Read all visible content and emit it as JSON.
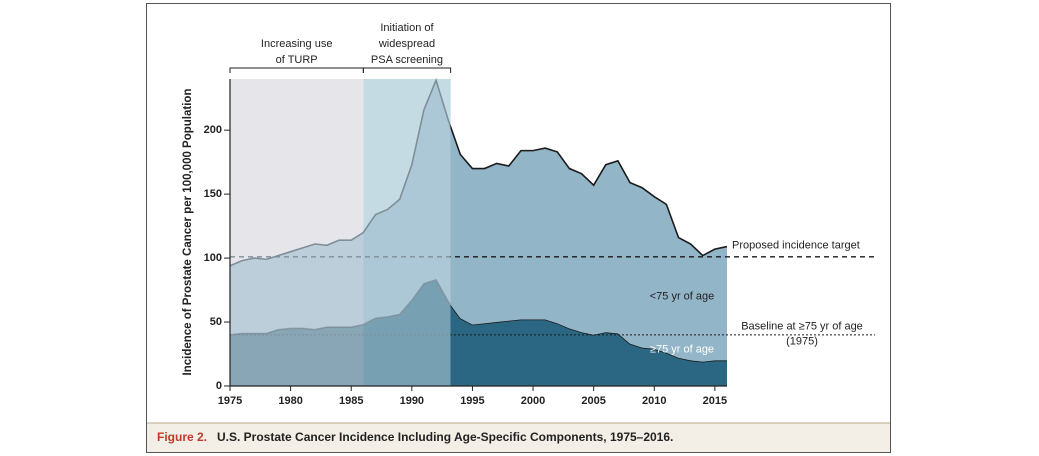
{
  "chart_data": {
    "type": "stacked-area",
    "y_label": "Incidence of Prostate Cancer per 100,000 Population",
    "caption": {
      "label": "Figure 2.",
      "text": "U.S. Prostate Cancer Incidence Including Age-Specific Components, 1975–2016."
    },
    "x": [
      1975,
      1976,
      1977,
      1978,
      1979,
      1980,
      1981,
      1982,
      1983,
      1984,
      1985,
      1986,
      1987,
      1988,
      1989,
      1990,
      1991,
      1992,
      1993,
      1994,
      1995,
      1996,
      1997,
      1998,
      1999,
      2000,
      2001,
      2002,
      2003,
      2004,
      2005,
      2006,
      2007,
      2008,
      2009,
      2010,
      2011,
      2012,
      2013,
      2014,
      2015,
      2016
    ],
    "series": [
      {
        "name": "≥75 yr of age",
        "color": "#2b6682",
        "values": [
          40,
          41,
          41,
          41,
          44,
          45,
          45,
          44,
          46,
          46,
          46,
          48,
          53,
          54,
          56,
          67,
          80,
          83,
          66,
          53,
          48,
          49,
          50,
          51,
          52,
          52,
          52,
          49,
          45,
          42,
          40,
          42,
          41,
          33,
          30,
          29,
          26,
          22,
          20,
          19,
          20,
          20
        ]
      },
      {
        "name": "<75 yr of age",
        "color": "#93b5c8",
        "values": [
          54,
          57,
          59,
          58,
          58,
          60,
          63,
          67,
          64,
          68,
          68,
          72,
          81,
          84,
          90,
          106,
          136,
          156,
          142,
          128,
          122,
          121,
          124,
          121,
          132,
          132,
          134,
          134,
          125,
          124,
          117,
          131,
          135,
          126,
          125,
          119,
          116,
          94,
          91,
          83,
          87,
          89
        ]
      }
    ],
    "periods": [
      {
        "label_lines": [
          "Increasing use",
          "of TURP"
        ],
        "start": 1975,
        "end": 1986,
        "color": "#e6e6ea"
      },
      {
        "label_lines": [
          "Initiation of",
          "widespread",
          "PSA screening"
        ],
        "start": 1986,
        "end": 1993.2,
        "color": "#c5dbe4"
      }
    ],
    "reference_lines": [
      {
        "label_lines": [
          "Proposed incidence target"
        ],
        "value": 101,
        "style": "dashed"
      },
      {
        "label_lines": [
          "Baseline at ≥75 yr of age",
          "(1975)"
        ],
        "value": 40,
        "style": "dotted"
      }
    ],
    "xlim": [
      1975,
      2016
    ],
    "xticks": [
      1975,
      1980,
      1985,
      1990,
      1995,
      2000,
      2005,
      2010,
      2015
    ],
    "ylim": [
      0,
      240
    ],
    "yticks": [
      0,
      50,
      100,
      150,
      200
    ]
  }
}
